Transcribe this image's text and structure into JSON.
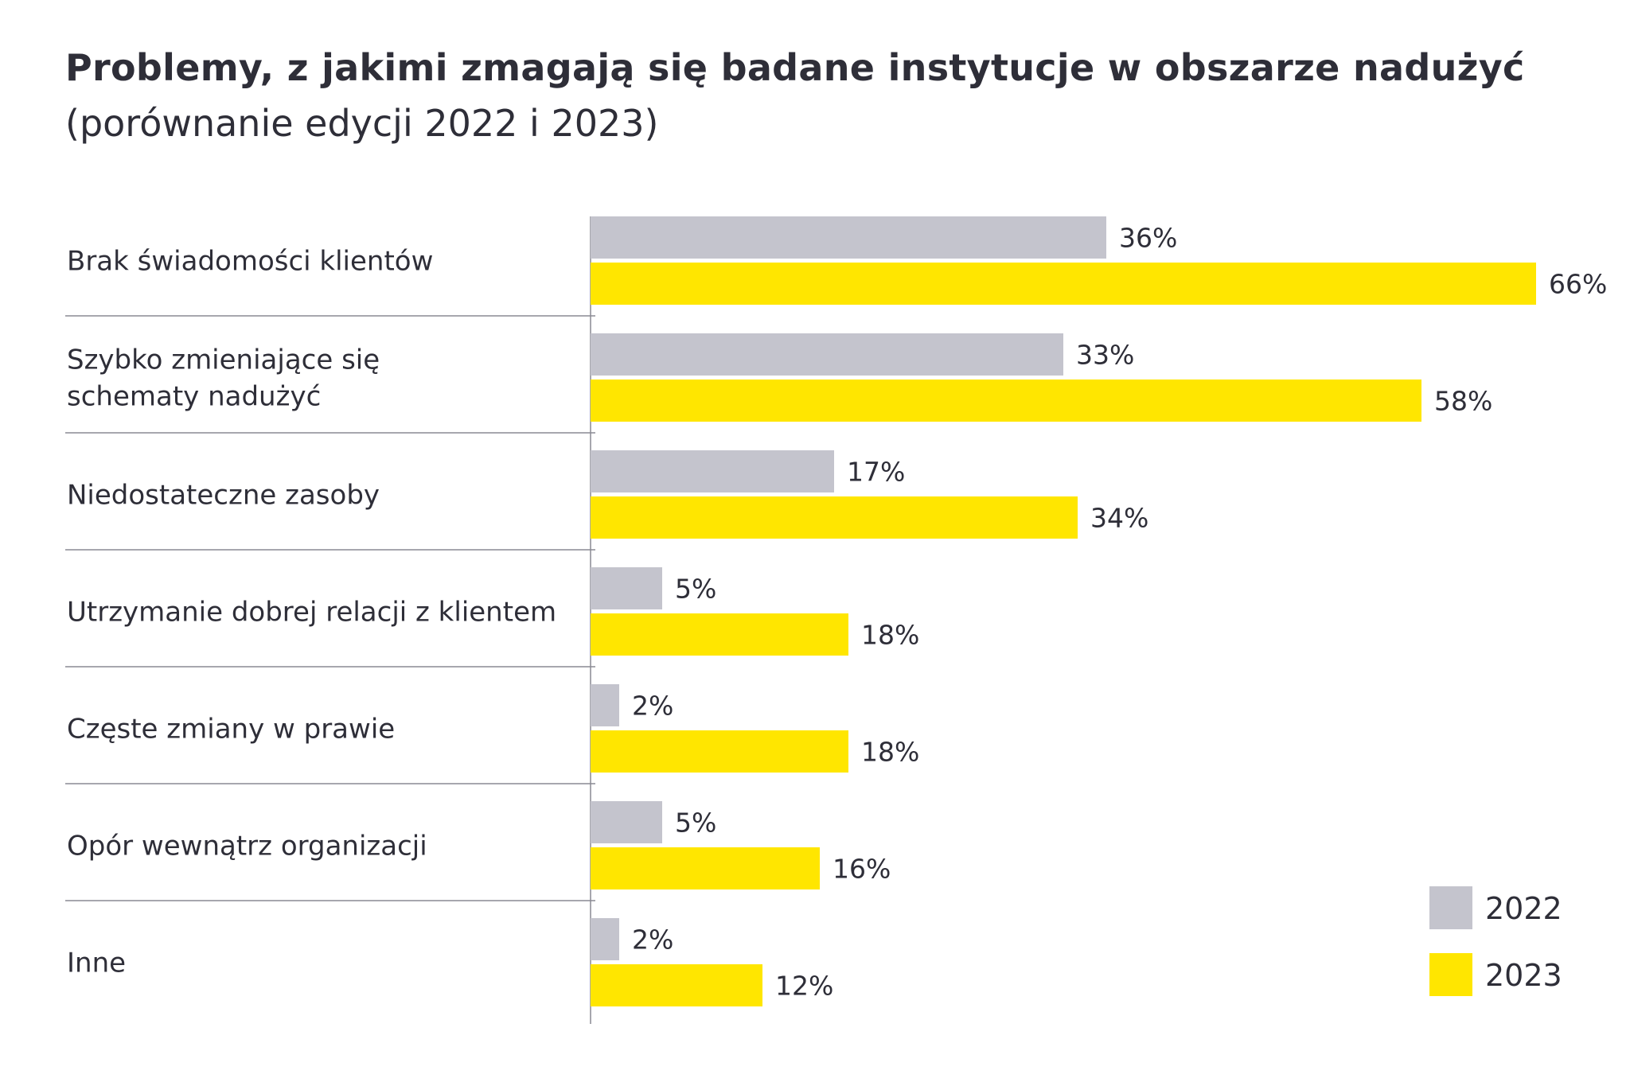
{
  "chart_data": {
    "type": "bar",
    "orientation": "horizontal",
    "title": "Problemy, z jakimi zmagają się badane instytucje w obszarze nadużyć",
    "subtitle": "(porównanie edycji 2022 i 2023)",
    "categories": [
      [
        "Brak świadomości klientów"
      ],
      [
        "Szybko zmieniające się",
        "schematy nadużyć"
      ],
      [
        "Niedostateczne zasoby"
      ],
      [
        "Utrzymanie dobrej relacji z klientem"
      ],
      [
        "Częste zmiany w prawie"
      ],
      [
        "Opór wewnątrz organizacji"
      ],
      [
        "Inne"
      ]
    ],
    "series": [
      {
        "name": "2022",
        "color": "#c4c4cd",
        "values": [
          36,
          33,
          17,
          5,
          2,
          5,
          2
        ],
        "labels": [
          "36%",
          "33%",
          "17%",
          "5%",
          "2%",
          "5%",
          "2%"
        ]
      },
      {
        "name": "2023",
        "color": "#ffe600",
        "values": [
          66,
          58,
          34,
          18,
          18,
          16,
          12
        ],
        "labels": [
          "66%",
          "58%",
          "34%",
          "18%",
          "18%",
          "16%",
          "12%"
        ]
      }
    ],
    "xlim": [
      0,
      66
    ],
    "value_suffix": "%",
    "legend_position": "bottom-right",
    "grid": false
  },
  "colors": {
    "text": "#2e2e38",
    "separator": "#8a8a94"
  }
}
